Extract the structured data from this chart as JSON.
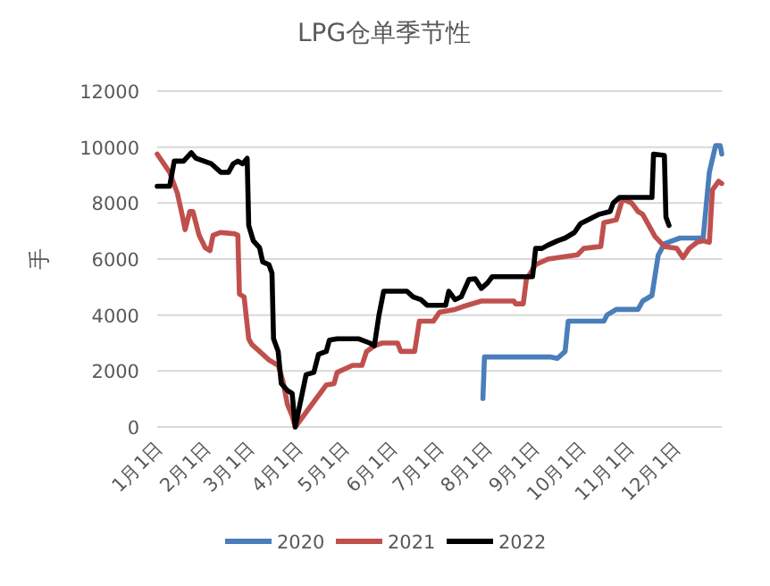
{
  "chart_data": {
    "type": "line",
    "title": "LPG仓单季节性",
    "ylabel": "手",
    "xlim": [
      "--01-01",
      "--12-31"
    ],
    "xticks": [
      {
        "value": "--01-01",
        "label": "1月1日"
      },
      {
        "value": "--02-01",
        "label": "2月1日"
      },
      {
        "value": "--03-01",
        "label": "3月1日"
      },
      {
        "value": "--04-01",
        "label": "4月1日"
      },
      {
        "value": "--05-01",
        "label": "5月1日"
      },
      {
        "value": "--06-01",
        "label": "6月1日"
      },
      {
        "value": "--07-01",
        "label": "7月1日"
      },
      {
        "value": "--08-01",
        "label": "8月1日"
      },
      {
        "value": "--09-01",
        "label": "9月1日"
      },
      {
        "value": "--10-01",
        "label": "10月1日"
      },
      {
        "value": "--11-01",
        "label": "11月1日"
      },
      {
        "value": "--12-01",
        "label": "12月1日"
      }
    ],
    "ylim": [
      0,
      12000
    ],
    "yticks": [
      0,
      2000,
      4000,
      6000,
      8000,
      10000,
      12000
    ],
    "grid": "y",
    "legend": "bottom",
    "marker": "none",
    "line_style": "solid",
    "series": [
      {
        "name": "2020",
        "color": "#4a7ebb",
        "x": [
          "--07-30",
          "--07-31",
          "--09-12",
          "--09-16",
          "--09-21",
          "--09-23",
          "--10-16",
          "--10-18",
          "--10-24",
          "--11-07",
          "--11-10",
          "--11-16",
          "--11-20",
          "--11-24",
          "--12-04",
          "--12-19",
          "--12-23",
          "--12-27",
          "--12-30",
          "--12-31"
        ],
        "values": [
          1020,
          2500,
          2500,
          2450,
          2700,
          3780,
          3780,
          4000,
          4200,
          4200,
          4500,
          4700,
          6130,
          6550,
          6750,
          6750,
          9100,
          10050,
          10050,
          9750
        ]
      },
      {
        "name": "2021",
        "color": "#c0504d",
        "x": [
          "--01-01",
          "--01-09",
          "--01-14",
          "--01-17",
          "--01-19",
          "--01-22",
          "--01-24",
          "--01-28",
          "--02-01",
          "--02-04",
          "--02-06",
          "--02-11",
          "--02-20",
          "--02-22",
          "--02-23",
          "--02-26",
          "--03-01",
          "--03-03",
          "--03-08",
          "--03-14",
          "--03-20",
          "--03-23",
          "--03-26",
          "--03-29",
          "--03-31",
          "--04-20",
          "--04-25",
          "--04-27",
          "--05-07",
          "--05-13",
          "--05-16",
          "--05-21",
          "--05-26",
          "--06-05",
          "--06-07",
          "--06-16",
          "--06-19",
          "--06-28",
          "--07-02",
          "--07-12",
          "--07-17",
          "--07-29",
          "--08-19",
          "--08-20",
          "--08-25",
          "--08-27",
          "--09-02",
          "--09-10",
          "--09-29",
          "--10-03",
          "--10-14",
          "--10-16",
          "--10-24",
          "--10-28",
          "--11-03",
          "--11-07",
          "--11-10",
          "--11-14",
          "--11-18",
          "--11-24",
          "--12-02",
          "--12-06",
          "--12-10",
          "--12-15",
          "--12-19",
          "--12-23",
          "--12-25",
          "--12-29",
          "--12-31"
        ],
        "values": [
          9750,
          9100,
          8350,
          7600,
          7050,
          7700,
          7700,
          6850,
          6400,
          6300,
          6850,
          6950,
          6900,
          6850,
          4750,
          4650,
          3150,
          2950,
          2700,
          2400,
          2200,
          1650,
          800,
          400,
          0,
          1500,
          1550,
          1950,
          2200,
          2200,
          2700,
          2900,
          3000,
          3000,
          2700,
          2700,
          3780,
          3780,
          4100,
          4200,
          4300,
          4500,
          4500,
          4400,
          4400,
          5270,
          5800,
          6000,
          6150,
          6380,
          6450,
          7300,
          7400,
          8150,
          8000,
          7700,
          7600,
          7200,
          6800,
          6450,
          6380,
          6050,
          6380,
          6600,
          6650,
          6600,
          8470,
          8780,
          8700
        ]
      },
      {
        "name": "2022",
        "color": "#000000",
        "x": [
          "--01-01",
          "--01-09",
          "--01-12",
          "--01-18",
          "--01-23",
          "--01-26",
          "--02-05",
          "--02-11",
          "--02-16",
          "--02-19",
          "--02-22",
          "--02-25",
          "--02-28",
          "--03-01",
          "--03-04",
          "--03-08",
          "--03-10",
          "--03-14",
          "--03-16",
          "--03-17",
          "--03-20",
          "--03-22",
          "--03-26",
          "--03-29",
          "--03-31",
          "--04-07",
          "--04-12",
          "--04-15",
          "--04-20",
          "--04-22",
          "--04-27",
          "--05-11",
          "--05-18",
          "--05-21",
          "--05-24",
          "--05-27",
          "--06-11",
          "--06-15",
          "--06-20",
          "--06-24",
          "--07-06",
          "--07-08",
          "--07-12",
          "--07-16",
          "--07-21",
          "--07-25",
          "--07-29",
          "--08-02",
          "--08-05",
          "--08-31",
          "--09-02",
          "--09-06",
          "--09-10",
          "--09-16",
          "--09-21",
          "--09-27",
          "--10-01",
          "--10-13",
          "--10-20",
          "--10-22",
          "--10-26",
          "--11-16",
          "--11-17",
          "--11-24",
          "--11-25",
          "--11-27"
        ],
        "values": [
          8600,
          8600,
          9500,
          9500,
          9800,
          9600,
          9400,
          9100,
          9100,
          9400,
          9500,
          9400,
          9600,
          7200,
          6650,
          6400,
          5900,
          5800,
          5500,
          3150,
          2700,
          1550,
          1300,
          1200,
          0,
          1870,
          1950,
          2600,
          2700,
          3100,
          3150,
          3150,
          3000,
          2900,
          4000,
          4850,
          4850,
          4650,
          4550,
          4350,
          4350,
          4850,
          4550,
          4650,
          5270,
          5300,
          4950,
          5150,
          5370,
          5370,
          6380,
          6380,
          6500,
          6650,
          6750,
          6950,
          7270,
          7600,
          7700,
          8000,
          8200,
          8200,
          9750,
          9700,
          7500,
          7200
        ]
      }
    ]
  }
}
